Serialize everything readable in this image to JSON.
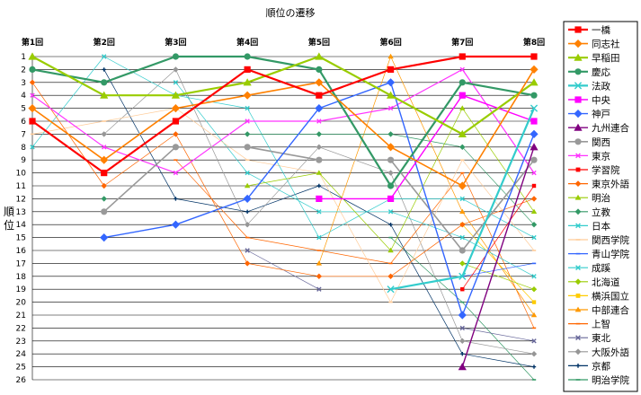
{
  "chart_data": {
    "type": "line",
    "title": "順位の遷移",
    "ylabel": "順位",
    "xlabel": "",
    "x": [
      "第1回",
      "第2回",
      "第3回",
      "第4回",
      "第5回",
      "第6回",
      "第7回",
      "第8回"
    ],
    "y_ticks": [
      1,
      2,
      3,
      4,
      5,
      6,
      7,
      8,
      9,
      10,
      11,
      12,
      13,
      14,
      15,
      16,
      17,
      18,
      19,
      20,
      21,
      22,
      23,
      24,
      25,
      26
    ],
    "ylim": [
      1,
      26
    ],
    "y_inverted": true,
    "grid": true,
    "legend": "right",
    "series": [
      {
        "name": "一橋",
        "color": "#ff0000",
        "marker": "square",
        "width": 2.2,
        "values": [
          6,
          10,
          6,
          2,
          4,
          2,
          1,
          1
        ]
      },
      {
        "name": "同志社",
        "color": "#ff8000",
        "marker": "diamond",
        "width": 1.6,
        "values": [
          5,
          9,
          5,
          4,
          3,
          8,
          11,
          2
        ]
      },
      {
        "name": "早稲田",
        "color": "#99cc00",
        "marker": "triangle",
        "width": 2.2,
        "values": [
          1,
          4,
          4,
          3,
          1,
          4,
          7,
          3
        ]
      },
      {
        "name": "慶応",
        "color": "#339966",
        "marker": "circle",
        "width": 2.2,
        "values": [
          2,
          3,
          1,
          1,
          2,
          11,
          3,
          4
        ]
      },
      {
        "name": "法政",
        "color": "#33cccc",
        "marker": "x",
        "width": 2.2,
        "values": [
          null,
          null,
          null,
          null,
          null,
          19,
          18,
          5
        ]
      },
      {
        "name": "中央",
        "color": "#ff00ff",
        "marker": "square",
        "width": 1.4,
        "values": [
          null,
          null,
          null,
          null,
          12,
          12,
          4,
          6
        ]
      },
      {
        "name": "神戸",
        "color": "#3366ff",
        "marker": "diamond",
        "width": 1.4,
        "values": [
          null,
          15,
          14,
          12,
          5,
          3,
          21,
          7
        ]
      },
      {
        "name": "九州連合",
        "color": "#800080",
        "marker": "triangle",
        "width": 1.4,
        "values": [
          null,
          null,
          null,
          null,
          null,
          null,
          25,
          8
        ]
      },
      {
        "name": "関西",
        "color": "#999999",
        "marker": "circle",
        "width": 1.6,
        "values": [
          null,
          13,
          8,
          8,
          9,
          9,
          16,
          9
        ]
      },
      {
        "name": "東京",
        "color": "#ff33ff",
        "marker": "x",
        "width": 1.2,
        "values": [
          4,
          8,
          10,
          6,
          6,
          5,
          2,
          10
        ]
      },
      {
        "name": "学習院",
        "color": "#ff0000",
        "marker": "square",
        "width": 0.7,
        "values": [
          null,
          null,
          null,
          null,
          null,
          null,
          19,
          11
        ]
      },
      {
        "name": "東京外語",
        "color": "#ff6600",
        "marker": "diamond",
        "width": 0.7,
        "values": [
          3,
          11,
          7,
          17,
          18,
          18,
          14,
          12
        ]
      },
      {
        "name": "明治",
        "color": "#99cc00",
        "marker": "triangle",
        "width": 0.7,
        "values": [
          null,
          null,
          null,
          11,
          10,
          16,
          5,
          13
        ]
      },
      {
        "name": "立教",
        "color": "#339966",
        "marker": "diamond",
        "width": 0.7,
        "values": [
          null,
          12,
          null,
          7,
          7,
          7,
          8,
          14
        ]
      },
      {
        "name": "日本",
        "color": "#33cccc",
        "marker": "x",
        "width": 0.7,
        "values": [
          8,
          1,
          4,
          5,
          15,
          12,
          12,
          15
        ]
      },
      {
        "name": "関西学院",
        "color": "#ffcc99",
        "marker": "dash",
        "width": 0.7,
        "values": [
          7,
          6,
          5,
          9,
          10,
          20,
          9,
          16
        ]
      },
      {
        "name": "青山学院",
        "color": "#3366ff",
        "marker": "dash",
        "width": 0.7,
        "values": [
          null,
          null,
          null,
          null,
          null,
          null,
          18,
          17
        ]
      },
      {
        "name": "成蹊",
        "color": "#33cccc",
        "marker": "x",
        "width": 0.7,
        "values": [
          null,
          null,
          3,
          10,
          13,
          13,
          15,
          18
        ]
      },
      {
        "name": "北海道",
        "color": "#99cc00",
        "marker": "diamond",
        "width": 0.7,
        "values": [
          null,
          null,
          null,
          null,
          null,
          null,
          17,
          19
        ]
      },
      {
        "name": "横浜国立",
        "color": "#ffcc00",
        "marker": "square",
        "width": 0.7,
        "values": [
          null,
          null,
          null,
          null,
          null,
          null,
          14,
          20
        ]
      },
      {
        "name": "中部連合",
        "color": "#ff9900",
        "marker": "triangle",
        "width": 0.7,
        "values": [
          null,
          null,
          null,
          null,
          17,
          1,
          13,
          21
        ]
      },
      {
        "name": "上智",
        "color": "#ff6600",
        "marker": "dash",
        "width": 0.7,
        "values": [
          null,
          null,
          9,
          15,
          16,
          17,
          10,
          22
        ]
      },
      {
        "name": "東北",
        "color": "#666699",
        "marker": "x",
        "width": 0.7,
        "values": [
          null,
          null,
          null,
          16,
          19,
          null,
          22,
          23
        ]
      },
      {
        "name": "大阪外語",
        "color": "#969696",
        "marker": "diamond",
        "width": 0.7,
        "values": [
          null,
          7,
          2,
          14,
          8,
          10,
          23,
          24
        ]
      },
      {
        "name": "京都",
        "color": "#003366",
        "marker": "plus",
        "width": 0.7,
        "values": [
          null,
          2,
          12,
          13,
          11,
          14,
          24,
          25
        ]
      },
      {
        "name": "明治学院",
        "color": "#339966",
        "marker": "dash",
        "width": 0.7,
        "values": [
          null,
          null,
          null,
          null,
          null,
          15,
          20,
          26
        ]
      }
    ]
  }
}
